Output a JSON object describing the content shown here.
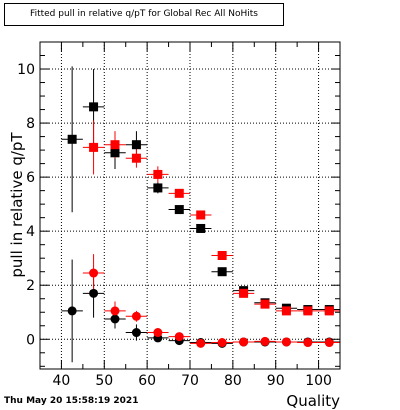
{
  "chart_data": {
    "type": "scatter",
    "title": "Fitted pull in relative q/pT for Global Rec All NoHits",
    "xlabel": "Quality",
    "ylabel": "pull in relative q/pT",
    "xlim": [
      35,
      105
    ],
    "ylim": [
      -1.1,
      11.0
    ],
    "x_ticks": [
      40,
      50,
      60,
      70,
      80,
      90,
      100
    ],
    "y_ticks": [
      0,
      2,
      4,
      6,
      8,
      10
    ],
    "grid": true,
    "legend": "none",
    "series": [
      {
        "color": "#000000",
        "marker": "square",
        "x": [
          42.5,
          47.5,
          52.5,
          57.5,
          62.5,
          67.5,
          72.5,
          77.5,
          82.5,
          87.5,
          92.5,
          97.5,
          102.5
        ],
        "y": [
          7.4,
          8.6,
          6.9,
          7.2,
          5.6,
          4.8,
          4.1,
          2.5,
          1.8,
          1.35,
          1.15,
          1.1,
          1.1
        ],
        "yerr": [
          2.7,
          1.4,
          0.6,
          0.5,
          0.2,
          0.1,
          0.1,
          0.1,
          0.06,
          0.05,
          0.04,
          0.04,
          0.04
        ]
      },
      {
        "color": "#ff0000",
        "marker": "square",
        "x": [
          47.5,
          52.5,
          57.5,
          62.5,
          67.5,
          72.5,
          77.5,
          82.5,
          87.5,
          92.5,
          97.5,
          102.5
        ],
        "y": [
          7.1,
          7.2,
          6.7,
          6.1,
          5.4,
          4.6,
          3.1,
          1.7,
          1.3,
          1.05,
          1.05,
          1.05
        ],
        "yerr": [
          1.0,
          0.5,
          0.35,
          0.3,
          0.15,
          0.1,
          0.08,
          0.06,
          0.05,
          0.04,
          0.04,
          0.04
        ]
      },
      {
        "color": "#000000",
        "marker": "circle",
        "x": [
          42.5,
          47.5,
          52.5,
          57.5,
          62.5,
          67.5,
          72.5,
          77.5,
          82.5,
          87.5,
          92.5,
          97.5,
          102.5
        ],
        "y": [
          1.05,
          1.7,
          0.75,
          0.25,
          0.05,
          -0.05,
          -0.12,
          -0.15,
          -0.1,
          -0.1,
          -0.1,
          -0.1,
          -0.1
        ],
        "yerr": [
          1.9,
          0.9,
          0.35,
          0.3,
          0.12,
          0.08,
          0.06,
          0.05,
          0.04,
          0.04,
          0.03,
          0.03,
          0.03
        ]
      },
      {
        "color": "#ff0000",
        "marker": "circle",
        "x": [
          47.5,
          52.5,
          57.5,
          62.5,
          67.5,
          72.5,
          77.5,
          82.5,
          87.5,
          92.5,
          97.5,
          102.5
        ],
        "y": [
          2.45,
          1.05,
          0.85,
          0.25,
          0.1,
          -0.15,
          -0.12,
          -0.1,
          -0.08,
          -0.1,
          -0.12,
          -0.12
        ],
        "yerr": [
          0.7,
          0.35,
          0.2,
          0.15,
          0.08,
          0.06,
          0.05,
          0.04,
          0.04,
          0.03,
          0.03,
          0.03
        ]
      }
    ]
  },
  "timestamp": "Thu May 20 15:58:19 2021"
}
